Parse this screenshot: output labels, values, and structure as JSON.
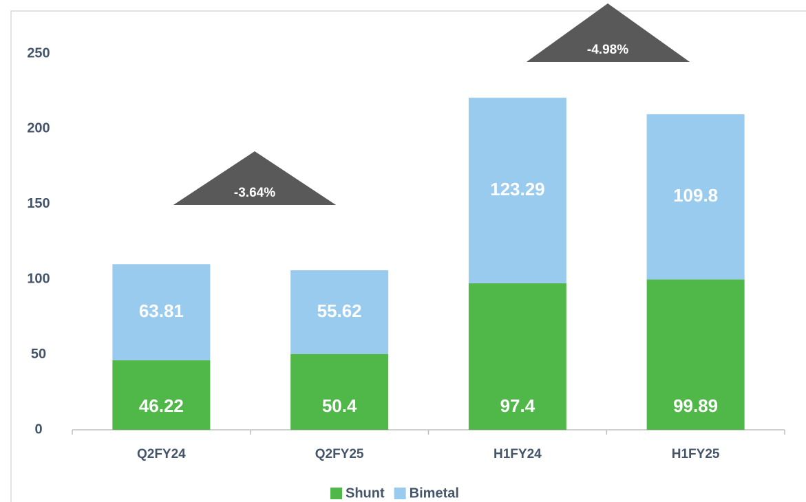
{
  "chart_data": {
    "type": "stacked_bar",
    "categories": [
      "Q2FY24",
      "Q2FY25",
      "H1FY24",
      "H1FY25"
    ],
    "series": [
      {
        "name": "Shunt",
        "color": "#50b848",
        "values": [
          46.22,
          50.4,
          97.4,
          99.89
        ]
      },
      {
        "name": "Bimetal",
        "color": "#99cbee",
        "values": [
          63.81,
          55.62,
          123.29,
          109.8
        ]
      }
    ],
    "ylim": [
      0,
      250
    ],
    "yticks": [
      0,
      50,
      100,
      150,
      200,
      250
    ],
    "annotations": [
      "-3.64%",
      "-4.98%"
    ],
    "legend": "bottom"
  }
}
